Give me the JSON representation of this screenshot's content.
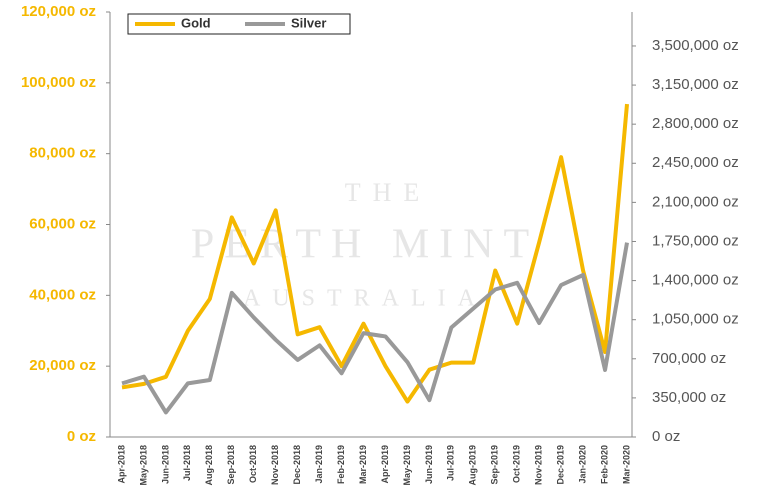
{
  "chart_data": {
    "type": "line",
    "watermark": [
      "THE",
      "PERTH MINT",
      "AUSTRALIA"
    ],
    "categories": [
      "Apr-2018",
      "May-2018",
      "Jun-2018",
      "Jul-2018",
      "Aug-2018",
      "Sep-2018",
      "Oct-2018",
      "Nov-2018",
      "Dec-2018",
      "Jan-2019",
      "Feb-2019",
      "Mar-2019",
      "Apr-2019",
      "May-2019",
      "Jun-2019",
      "Jul-2019",
      "Aug-2019",
      "Sep-2019",
      "Oct-2019",
      "Nov-2019",
      "Dec-2019",
      "Jan-2020",
      "Feb-2020",
      "Mar-2020"
    ],
    "series": [
      {
        "name": "Gold",
        "color": "#f5b800",
        "values": [
          14000,
          15000,
          17000,
          30000,
          39000,
          62000,
          49000,
          64000,
          29000,
          31000,
          20000,
          32000,
          20000,
          10000,
          19000,
          21000,
          21000,
          47000,
          32000,
          55000,
          79000,
          47000,
          24000,
          94000
        ]
      },
      {
        "name": "Silver",
        "color": "#999999",
        "axis": "y2",
        "values": [
          480000,
          540000,
          220000,
          480000,
          510000,
          1290000,
          1070000,
          870000,
          690000,
          820000,
          570000,
          930000,
          900000,
          670000,
          330000,
          980000,
          1150000,
          1320000,
          1380000,
          1020000,
          1360000,
          1450000,
          600000,
          1740000
        ]
      }
    ],
    "ylim": [
      0,
      120000
    ],
    "yticks": [
      {
        "value": 0,
        "label": "0 oz"
      },
      {
        "value": 20000,
        "label": "20,000 oz"
      },
      {
        "value": 40000,
        "label": "40,000 oz"
      },
      {
        "value": 60000,
        "label": "60,000 oz"
      },
      {
        "value": 80000,
        "label": "80,000 oz"
      },
      {
        "value": 100000,
        "label": "100,000 oz"
      },
      {
        "value": 120000,
        "label": "120,000 oz"
      }
    ],
    "y2lim": [
      0,
      3804000
    ],
    "y2ticks": [
      {
        "value": 0,
        "label": "0 oz"
      },
      {
        "value": 350000,
        "label": "350,000 oz"
      },
      {
        "value": 700000,
        "label": "700,000 oz"
      },
      {
        "value": 1050000,
        "label": "1,050,000 oz"
      },
      {
        "value": 1400000,
        "label": "1,400,000 oz"
      },
      {
        "value": 1750000,
        "label": "1,750,000 oz"
      },
      {
        "value": 2100000,
        "label": "2,100,000 oz"
      },
      {
        "value": 2450000,
        "label": "2,450,000 oz"
      },
      {
        "value": 2800000,
        "label": "2,800,000 oz"
      },
      {
        "value": 3150000,
        "label": "3,150,000 oz"
      },
      {
        "value": 3500000,
        "label": "3,500,000 oz"
      }
    ],
    "legend": "top-left"
  }
}
